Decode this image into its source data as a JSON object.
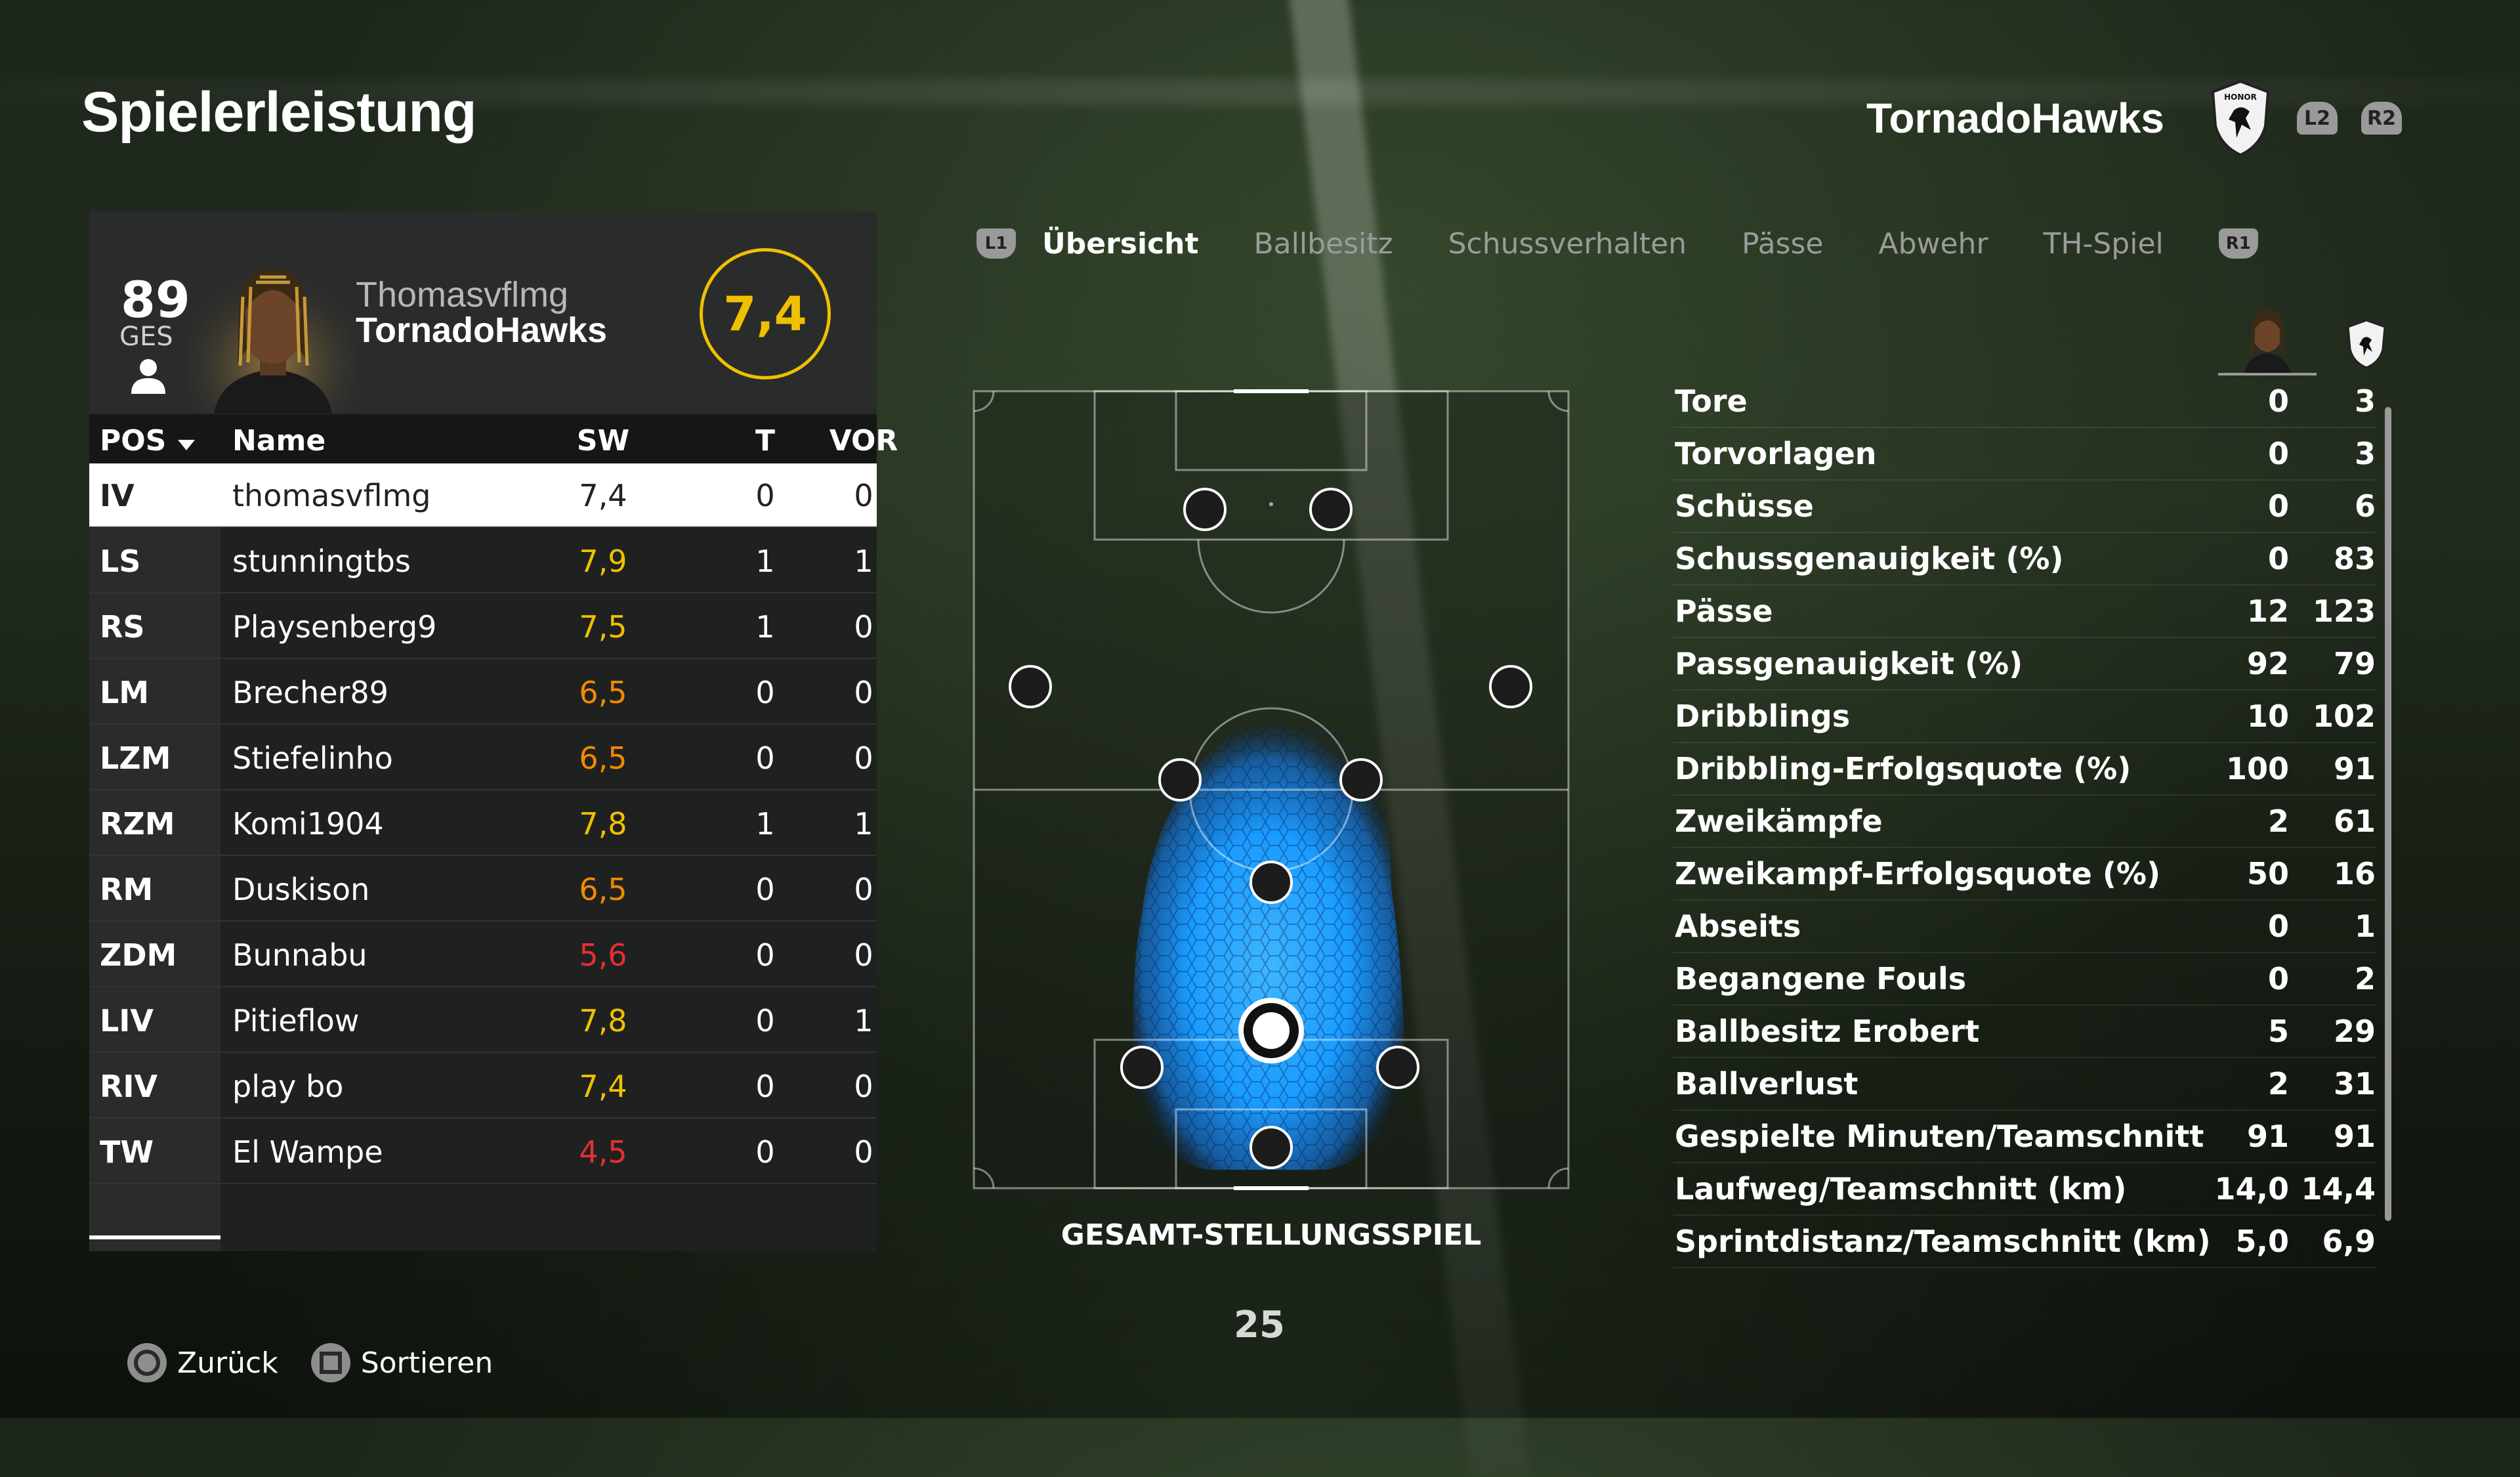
{
  "page_title": "Spielerleistung",
  "team_header": {
    "name": "TornadoHawks",
    "crest_text": "HONOR",
    "l2": "L2",
    "r2": "R2"
  },
  "player_card": {
    "overall": "89",
    "overall_label": "GES",
    "gamertag": "Thomasvflmg",
    "team": "TornadoHawks",
    "rating": "7,4"
  },
  "table": {
    "headers": {
      "pos": "POS",
      "name": "Name",
      "sw": "SW",
      "t": "T",
      "vor": "VOR"
    },
    "rows": [
      {
        "pos": "IV",
        "name": "thomasvflmg",
        "sw": "7,4",
        "t": "0",
        "vor": "0"
      },
      {
        "pos": "LS",
        "name": "stunningtbs",
        "sw": "7,9",
        "t": "1",
        "vor": "1"
      },
      {
        "pos": "RS",
        "name": "Playsenberg9",
        "sw": "7,5",
        "t": "1",
        "vor": "0"
      },
      {
        "pos": "LM",
        "name": "Brecher89",
        "sw": "6,5",
        "t": "0",
        "vor": "0"
      },
      {
        "pos": "LZM",
        "name": "Stiefelinho",
        "sw": "6,5",
        "t": "0",
        "vor": "0"
      },
      {
        "pos": "RZM",
        "name": "Komi1904",
        "sw": "7,8",
        "t": "1",
        "vor": "1"
      },
      {
        "pos": "RM",
        "name": "Duskison",
        "sw": "6,5",
        "t": "0",
        "vor": "0"
      },
      {
        "pos": "ZDM",
        "name": "Bunnabu",
        "sw": "5,6",
        "t": "0",
        "vor": "0"
      },
      {
        "pos": "LIV",
        "name": "Pitieflow",
        "sw": "7,8",
        "t": "0",
        "vor": "1"
      },
      {
        "pos": "RIV",
        "name": "play bo",
        "sw": "7,4",
        "t": "0",
        "vor": "0"
      },
      {
        "pos": "TW",
        "name": "El Wampe",
        "sw": "4,5",
        "t": "0",
        "vor": "0"
      }
    ]
  },
  "rating_colors": {
    "selected": "#222222",
    "high": "#f0c000",
    "mid": "#f08a00",
    "low": "#e53030"
  },
  "tabs": {
    "l1": "L1",
    "r1": "R1",
    "items": [
      "Übersicht",
      "Ballbesitz",
      "Schussverhalten",
      "Pässe",
      "Abwehr",
      "TH-Spiel"
    ],
    "active": "Übersicht"
  },
  "pitch": {
    "caption": "GESAMT-STELLUNGSSPIEL"
  },
  "stats": [
    {
      "label": "Tore",
      "player": "0",
      "team": "3"
    },
    {
      "label": "Torvorlagen",
      "player": "0",
      "team": "3"
    },
    {
      "label": "Schüsse",
      "player": "0",
      "team": "6"
    },
    {
      "label": "Schussgenauigkeit (%)",
      "player": "0",
      "team": "83"
    },
    {
      "label": "Pässe",
      "player": "12",
      "team": "123"
    },
    {
      "label": "Passgenauigkeit (%)",
      "player": "92",
      "team": "79"
    },
    {
      "label": "Dribblings",
      "player": "10",
      "team": "102"
    },
    {
      "label": "Dribbling-Erfolgsquote (%)",
      "player": "100",
      "team": "91"
    },
    {
      "label": "Zweikämpfe",
      "player": "2",
      "team": "61"
    },
    {
      "label": "Zweikampf-Erfolgsquote (%)",
      "player": "50",
      "team": "16"
    },
    {
      "label": "Abseits",
      "player": "0",
      "team": "1"
    },
    {
      "label": "Begangene Fouls",
      "player": "0",
      "team": "2"
    },
    {
      "label": "Ballbesitz Erobert",
      "player": "5",
      "team": "29"
    },
    {
      "label": "Ballverlust",
      "player": "2",
      "team": "31"
    },
    {
      "label": "Gespielte Minuten/Teamschnitt",
      "player": "91",
      "team": "91"
    },
    {
      "label": "Laufweg/Teamschnitt (km)",
      "player": "14,0",
      "team": "14,4"
    },
    {
      "label": "Sprintdistanz/Teamschnitt (km)",
      "player": "5,0",
      "team": "6,9"
    }
  ],
  "page_number": "25",
  "footer": {
    "back": "Zurück",
    "sort": "Sortieren"
  },
  "icons": [
    "circle-button-icon",
    "square-button-icon",
    "person-icon",
    "team-crest-icon",
    "player-portrait",
    "sort-down-icon"
  ]
}
